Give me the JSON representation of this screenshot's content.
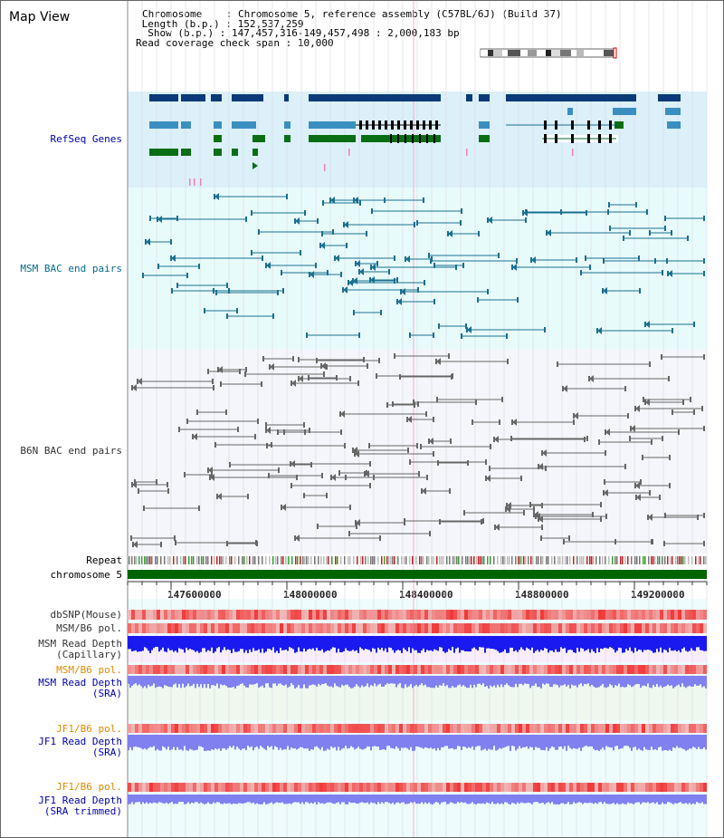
{
  "header": {
    "title": "Map View",
    "chromosome_label": "Chromosome",
    "chromosome_value": "Chromosome 5, reference assembly (C57BL/6J) (Build 37)",
    "length_label": "Length (b.p.)",
    "length_value": "152,537,259",
    "show_label": "Show (b.p.)",
    "show_value": "147,457,316-149,457,498 : 2,000,183 bp",
    "coverage_label": "Read coverage check span",
    "coverage_value": "10,000"
  },
  "tracks": {
    "refseq": "RefSeq Genes",
    "msm_bac": "MSM BAC end pairs",
    "b6n_bac": "B6N BAC end pairs",
    "repeat": "Repeat",
    "chromosome": "chromosome 5",
    "dbsnp": "dbSNP(Mouse)",
    "msm_b6_pol_1": "MSM/B6 pol.",
    "msm_read_depth_cap_1": "MSM Read Depth",
    "msm_read_depth_cap_2": "(Capillary)",
    "msm_b6_pol_2": "MSM/B6 pol.",
    "msm_read_depth_sra_1": "MSM Read Depth",
    "msm_read_depth_sra_2": "(SRA)",
    "jf1_b6_pol_1": "JF1/B6 pol.",
    "jf1_read_depth_sra_1": "JF1 Read Depth",
    "jf1_read_depth_sra_2": "(SRA)",
    "jf1_b6_pol_2": "JF1/B6 pol.",
    "jf1_read_depth_trim_1": "JF1 Read Depth",
    "jf1_read_depth_trim_2": "(SRA trimmed)"
  },
  "axis": {
    "ticks": [
      "147600000",
      "148000000",
      "148400000",
      "148800000",
      "149200000"
    ]
  },
  "colors": {
    "refseq_bg": "#dcf0fa",
    "msm_bg": "#e8fbfb",
    "b6n_bg": "#f4f6fb",
    "gene_dark": "#0a3a78",
    "gene_mid": "#3a8fc0",
    "gene_green": "#0a6e14",
    "chromosome_bar": "#006400",
    "depth_blue": "#1a1af0",
    "depth_light": "#8080f0"
  }
}
